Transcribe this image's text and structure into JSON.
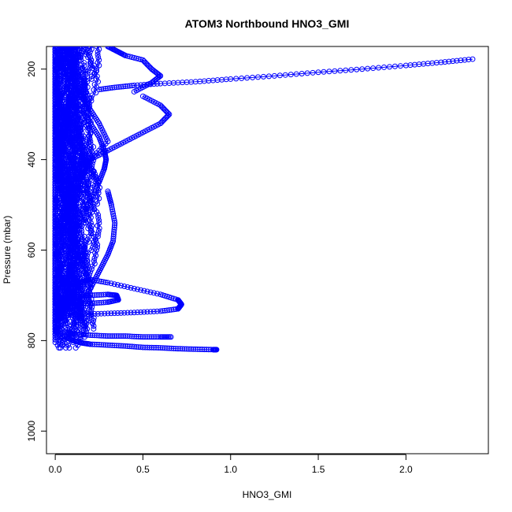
{
  "chart_data": {
    "type": "scatter",
    "title": "ATOM3 Northbound HNO3_GMI",
    "xlabel": "HNO3_GMI",
    "ylabel": "Pressure (mbar)",
    "xlim": [
      -0.05,
      2.47
    ],
    "ylim": [
      150,
      1050
    ],
    "y_inverted": true,
    "x_ticks": [
      "0.0",
      "0.5",
      "1.0",
      "1.5",
      "2.0"
    ],
    "y_ticks": [
      "200",
      "400",
      "600",
      "800",
      "1000"
    ],
    "grid": false,
    "legend": "none",
    "marker": "open-circle",
    "series": [
      {
        "color": "#0000ff",
        "description_of_profiles": [
          {
            "x": [
              2.38,
              2.2,
              2.0,
              1.75,
              1.5,
              1.25,
              1.0,
              0.8,
              0.6,
              0.45,
              0.35,
              0.25
            ],
            "y": [
              178,
              185,
              192,
              200,
              207,
              215,
              222,
              228,
              232,
              236,
              240,
              245
            ]
          },
          {
            "x": [
              0.0,
              0.05,
              0.08,
              0.1,
              0.12,
              0.15,
              0.2,
              0.3,
              0.45,
              0.6,
              0.7,
              0.72,
              0.7,
              0.6,
              0.45,
              0.3,
              0.15,
              0.05
            ],
            "y": [
              760,
              740,
              720,
              700,
              680,
              670,
              665,
              672,
              685,
              698,
              710,
              720,
              730,
              735,
              738,
              740,
              742,
              745
            ]
          },
          {
            "x": [
              0.05,
              0.1,
              0.15,
              0.2,
              0.3,
              0.4,
              0.5,
              0.6,
              0.7,
              0.8,
              0.9,
              0.92
            ],
            "y": [
              790,
              800,
              805,
              808,
              810,
              812,
              815,
              816,
              818,
              819,
              820,
              820
            ]
          },
          {
            "x": [
              0.05,
              0.1,
              0.2,
              0.3,
              0.4,
              0.5,
              0.6,
              0.66
            ],
            "y": [
              780,
              785,
              788,
              790,
              790,
              792,
              792,
              792
            ]
          },
          {
            "x": [
              0.0,
              0.05,
              0.1,
              0.2,
              0.3,
              0.35,
              0.36,
              0.3,
              0.2,
              0.1
            ],
            "y": [
              720,
              710,
              705,
              700,
              698,
              700,
              710,
              715,
              718,
              720
            ]
          },
          {
            "x": [
              0.02,
              0.1,
              0.2,
              0.25,
              0.28,
              0.29,
              0.28,
              0.25,
              0.2,
              0.15,
              0.1
            ],
            "y": [
              620,
              560,
              500,
              450,
              420,
              400,
              380,
              350,
              320,
              290,
              260
            ]
          },
          {
            "x": [
              0.1,
              0.2,
              0.3,
              0.4,
              0.5,
              0.6,
              0.65,
              0.6,
              0.5
            ],
            "y": [
              420,
              400,
              380,
              360,
              340,
              320,
              300,
              280,
              260
            ]
          },
          {
            "x": [
              0.02,
              0.05,
              0.1,
              0.15,
              0.2,
              0.25,
              0.3,
              0.2,
              0.15
            ],
            "y": [
              170,
              200,
              230,
              260,
              290,
              320,
              360,
              400,
              440
            ]
          },
          {
            "x": [
              0.3,
              0.35,
              0.4,
              0.5,
              0.55,
              0.6,
              0.55,
              0.45
            ],
            "y": [
              150,
              160,
              170,
              180,
              200,
              215,
              230,
              250
            ]
          },
          {
            "x": [
              0.3,
              0.32,
              0.34,
              0.33,
              0.3,
              0.26,
              0.22,
              0.18,
              0.12
            ],
            "y": [
              470,
              500,
              540,
              580,
              610,
              640,
              670,
              700,
              730
            ]
          }
        ]
      }
    ]
  }
}
